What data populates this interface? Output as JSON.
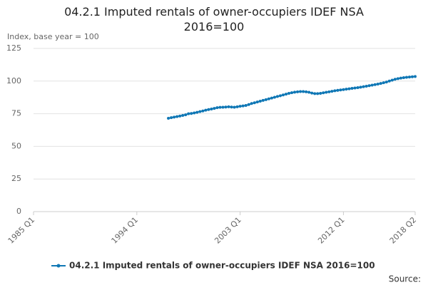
{
  "chart_data": {
    "type": "line",
    "title": "04.2.1 Imputed rentals of owner-occupiers IDEF NSA 2016=100",
    "y_label": "Index, base year = 100",
    "source_label": "Source:",
    "categories": [
      "1985 Q1",
      null,
      null,
      null,
      null,
      null,
      null,
      null,
      null,
      null,
      null,
      null,
      null,
      null,
      null,
      null,
      null,
      null,
      null,
      null,
      null,
      null,
      null,
      null,
      null,
      null,
      null,
      null,
      null,
      null,
      null,
      null,
      null,
      null,
      null,
      null,
      "1994 Q1",
      null,
      null,
      null,
      null,
      null,
      null,
      null,
      null,
      null,
      null,
      null,
      null,
      null,
      null,
      null,
      null,
      null,
      null,
      null,
      null,
      null,
      null,
      null,
      null,
      null,
      null,
      null,
      null,
      null,
      null,
      null,
      null,
      null,
      null,
      null,
      "2003 Q1",
      null,
      null,
      null,
      null,
      null,
      null,
      null,
      null,
      null,
      null,
      null,
      null,
      null,
      null,
      null,
      null,
      null,
      null,
      null,
      null,
      null,
      null,
      null,
      null,
      null,
      null,
      null,
      null,
      null,
      null,
      null,
      null,
      null,
      null,
      null,
      "2012 Q1",
      null,
      null,
      null,
      null,
      null,
      null,
      null,
      null,
      null,
      null,
      null,
      null,
      null,
      null,
      null,
      null,
      null,
      null,
      null,
      null,
      null,
      null,
      null,
      null,
      "2018 Q2"
    ],
    "series": [
      {
        "name": "04.2.1 Imputed rentals of owner-occupiers IDEF NSA 2016=100",
        "color": "#0f77b5",
        "values": [
          null,
          null,
          null,
          null,
          null,
          null,
          null,
          null,
          null,
          null,
          null,
          null,
          null,
          null,
          null,
          null,
          null,
          null,
          null,
          null,
          null,
          null,
          null,
          null,
          null,
          null,
          null,
          null,
          null,
          null,
          null,
          null,
          null,
          null,
          null,
          null,
          null,
          null,
          null,
          null,
          null,
          null,
          null,
          null,
          null,
          null,
          null,
          71.5,
          72.0,
          72.4,
          72.8,
          73.2,
          73.7,
          74.2,
          75.0,
          75.2,
          75.6,
          76.1,
          76.6,
          77.1,
          77.7,
          78.2,
          78.6,
          79.1,
          79.6,
          79.9,
          80.0,
          80.1,
          80.3,
          80.1,
          80.0,
          80.3,
          80.7,
          81.0,
          81.3,
          82.0,
          82.8,
          83.4,
          84.0,
          84.6,
          85.2,
          85.8,
          86.4,
          87.0,
          87.6,
          88.2,
          88.8,
          89.4,
          90.0,
          90.6,
          91.1,
          91.5,
          91.8,
          92.0,
          92.0,
          91.8,
          91.4,
          90.8,
          90.4,
          90.4,
          90.6,
          91.0,
          91.4,
          91.8,
          92.2,
          92.6,
          92.9,
          93.2,
          93.5,
          93.8,
          94.1,
          94.4,
          94.7,
          95.0,
          95.3,
          95.7,
          96.1,
          96.5,
          96.9,
          97.3,
          97.7,
          98.2,
          98.7,
          99.3,
          100.0,
          100.7,
          101.4,
          101.9,
          102.3,
          102.6,
          102.9,
          103.1,
          103.3,
          103.5
        ]
      }
    ],
    "ylim": [
      0,
      125
    ],
    "yticks": [
      0,
      25,
      50,
      75,
      100,
      125
    ],
    "grid": true
  }
}
